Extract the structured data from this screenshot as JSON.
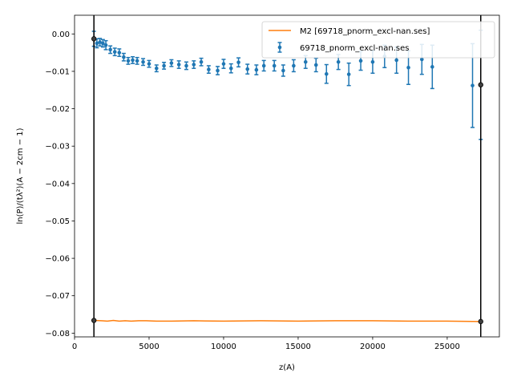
{
  "chart_data": {
    "type": "scatter",
    "xlabel": "z(A)",
    "ylabel": "ln(P)/(tλ²)(A − 2cm − 1)",
    "xlim": [
      0,
      28500
    ],
    "ylim": [
      -0.081,
      0.005
    ],
    "x_ticks": [
      0,
      5000,
      10000,
      15000,
      20000,
      25000
    ],
    "y_ticks": [
      0.0,
      -0.01,
      -0.02,
      -0.03,
      -0.04,
      -0.05,
      -0.06,
      -0.07,
      -0.08
    ],
    "x_tick_labels": [
      "0",
      "5000",
      "10000",
      "15000",
      "20000",
      "25000"
    ],
    "y_tick_labels": [
      "0.00",
      "−0.01",
      "−0.02",
      "−0.03",
      "−0.04",
      "−0.05",
      "−0.06",
      "−0.07",
      "−0.08"
    ],
    "grid": false,
    "legend_position": "top-right",
    "vlines": [
      1300,
      27250
    ],
    "series": [
      {
        "name": "M2 [69718_pnorm_excl-nan.ses]",
        "kind": "line",
        "color": "#ff7f0e",
        "x": [
          1300,
          1800,
          2200,
          2600,
          3000,
          3400,
          3800,
          4300,
          4800,
          5500,
          6500,
          8000,
          10000,
          12500,
          15000,
          17500,
          20000,
          22500,
          25000,
          27250
        ],
        "y": [
          -0.0766,
          -0.0767,
          -0.0768,
          -0.0766,
          -0.0768,
          -0.0767,
          -0.0768,
          -0.0767,
          -0.0767,
          -0.0768,
          -0.0768,
          -0.0767,
          -0.0768,
          -0.0767,
          -0.0768,
          -0.0767,
          -0.0767,
          -0.0768,
          -0.0768,
          -0.0769
        ]
      },
      {
        "name": "69718_pnorm_excl-nan.ses",
        "kind": "errorbar",
        "color": "#1f77b4",
        "x": [
          1300,
          1500,
          1700,
          1900,
          2100,
          2400,
          2700,
          3000,
          3300,
          3600,
          3900,
          4200,
          4600,
          5000,
          5500,
          6000,
          6500,
          7000,
          7500,
          8000,
          8500,
          9000,
          9600,
          10000,
          10500,
          11000,
          11600,
          12200,
          12700,
          13400,
          14000,
          14700,
          15500,
          16200,
          16900,
          17700,
          18400,
          19200,
          20000,
          20800,
          21600,
          22400,
          23300,
          24000,
          26700,
          27250
        ],
        "y": [
          -0.0013,
          -0.0025,
          -0.0022,
          -0.0025,
          -0.003,
          -0.0042,
          -0.0048,
          -0.005,
          -0.0062,
          -0.0072,
          -0.007,
          -0.0072,
          -0.0075,
          -0.008,
          -0.0092,
          -0.0085,
          -0.0078,
          -0.0082,
          -0.0085,
          -0.0082,
          -0.0075,
          -0.0095,
          -0.0098,
          -0.008,
          -0.0092,
          -0.0076,
          -0.0094,
          -0.0096,
          -0.0085,
          -0.0085,
          -0.0098,
          -0.0085,
          -0.0075,
          -0.0083,
          -0.0107,
          -0.0075,
          -0.0108,
          -0.0072,
          -0.0075,
          -0.006,
          -0.007,
          -0.009,
          -0.0068,
          -0.0088,
          -0.0138,
          -0.0136
        ],
        "err": [
          0.002,
          0.0012,
          0.001,
          0.001,
          0.0012,
          0.001,
          0.001,
          0.001,
          0.001,
          0.0009,
          0.0009,
          0.0009,
          0.0009,
          0.0009,
          0.0009,
          0.0009,
          0.0009,
          0.001,
          0.001,
          0.001,
          0.001,
          0.001,
          0.0011,
          0.0012,
          0.0012,
          0.0012,
          0.0013,
          0.0013,
          0.0014,
          0.0014,
          0.0015,
          0.0016,
          0.0017,
          0.0018,
          0.0025,
          0.002,
          0.003,
          0.0025,
          0.003,
          0.003,
          0.0035,
          0.0045,
          0.004,
          0.0058,
          0.0112,
          0.0146
        ]
      }
    ],
    "endpoint_markers": [
      {
        "x": 1300,
        "y": -0.0013
      },
      {
        "x": 1300,
        "y": -0.0766
      },
      {
        "x": 27250,
        "y": -0.0136
      },
      {
        "x": 27250,
        "y": -0.0769
      }
    ]
  }
}
